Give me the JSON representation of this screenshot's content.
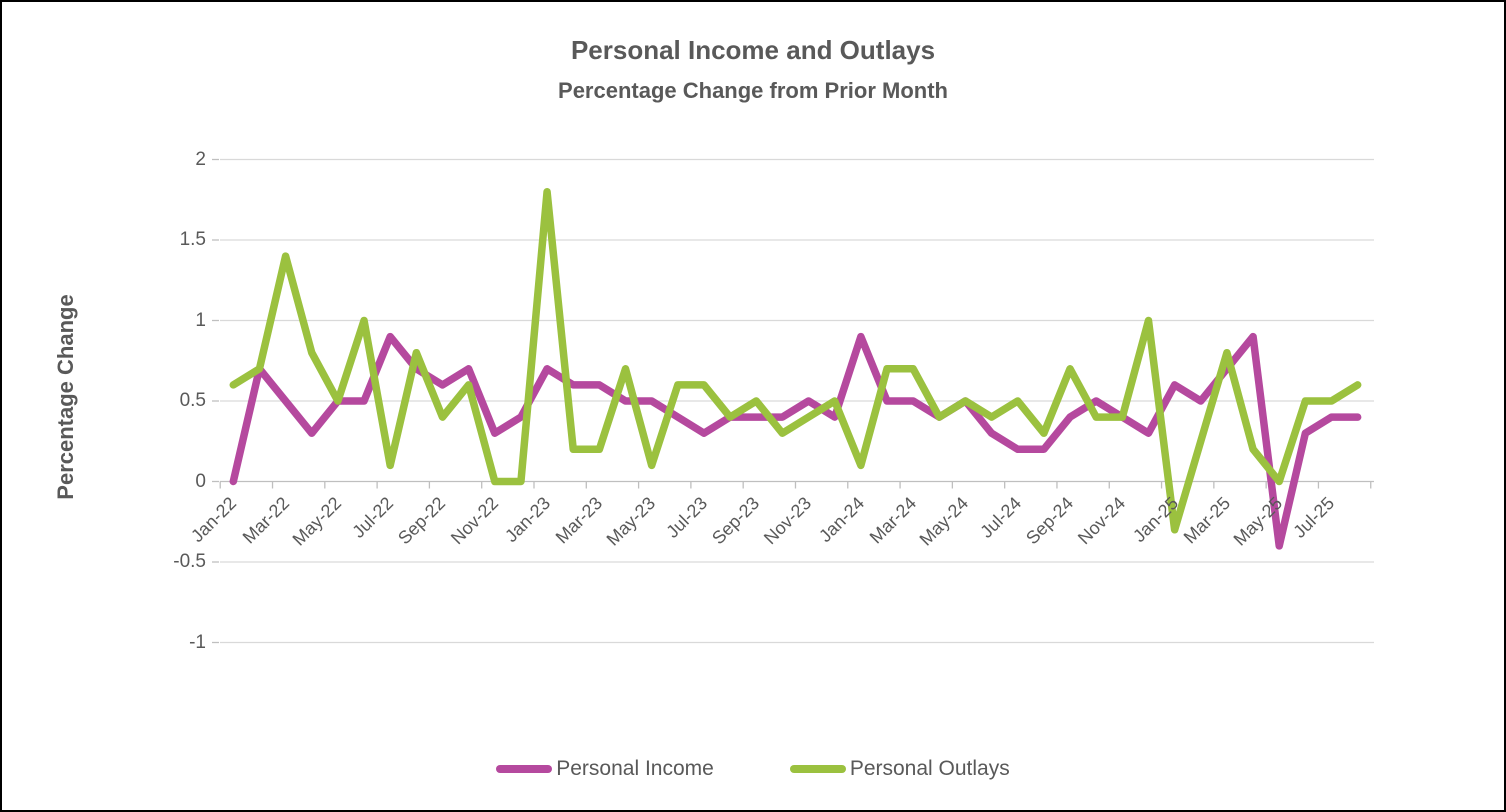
{
  "title": "Personal Income and Outlays",
  "subtitle": "Percentage Change from Prior Month",
  "y_axis_title": "Percentage Change",
  "colors": {
    "income_line": "#b5499e",
    "outlays_line": "#9bc13f",
    "gridline": "#d9d9d9",
    "axis_line": "#bfbfbf",
    "text": "#595959"
  },
  "chart_data": {
    "type": "line",
    "x": [
      "Jan-22",
      "Feb-22",
      "Mar-22",
      "Apr-22",
      "May-22",
      "Jun-22",
      "Jul-22",
      "Aug-22",
      "Sep-22",
      "Oct-22",
      "Nov-22",
      "Dec-22",
      "Jan-23",
      "Feb-23",
      "Mar-23",
      "Apr-23",
      "May-23",
      "Jun-23",
      "Jul-23",
      "Aug-23",
      "Sep-23",
      "Oct-23",
      "Nov-23",
      "Dec-23",
      "Jan-24",
      "Feb-24",
      "Mar-24",
      "Apr-24",
      "May-24",
      "Jun-24",
      "Jul-24",
      "Aug-24",
      "Sep-24",
      "Oct-24",
      "Nov-24",
      "Dec-24",
      "Jan-25",
      "Feb-25",
      "Mar-25",
      "Apr-25",
      "May-25",
      "Jun-25",
      "Jul-25",
      "Aug-25"
    ],
    "x_tick_labels": [
      "Jan-22",
      "Mar-22",
      "May-22",
      "Jul-22",
      "Sep-22",
      "Nov-22",
      "Jan-23",
      "Mar-23",
      "May-23",
      "Jul-23",
      "Sep-23",
      "Nov-23",
      "Jan-24",
      "Mar-24",
      "May-24",
      "Jul-24",
      "Sep-24",
      "Nov-24",
      "Jan-25",
      "Mar-25",
      "May-25",
      "Jul-25"
    ],
    "series": [
      {
        "name": "Personal Income",
        "color": "#b5499e",
        "values": [
          0.0,
          0.7,
          0.5,
          0.3,
          0.5,
          0.5,
          0.9,
          0.7,
          0.6,
          0.7,
          0.3,
          0.4,
          0.7,
          0.6,
          0.6,
          0.5,
          0.5,
          0.4,
          0.3,
          0.4,
          0.4,
          0.4,
          0.5,
          0.4,
          0.9,
          0.5,
          0.5,
          0.4,
          0.5,
          0.3,
          0.2,
          0.2,
          0.4,
          0.5,
          0.4,
          0.3,
          0.6,
          0.5,
          0.7,
          0.9,
          -0.4,
          0.3,
          0.4,
          0.4
        ]
      },
      {
        "name": "Personal Outlays",
        "color": "#9bc13f",
        "values": [
          0.6,
          0.7,
          1.4,
          0.8,
          0.5,
          1.0,
          0.1,
          0.8,
          0.4,
          0.6,
          0.0,
          0.0,
          1.8,
          0.2,
          0.2,
          0.7,
          0.1,
          0.6,
          0.6,
          0.4,
          0.5,
          0.3,
          0.4,
          0.5,
          0.1,
          0.7,
          0.7,
          0.4,
          0.5,
          0.4,
          0.5,
          0.3,
          0.7,
          0.4,
          0.4,
          1.0,
          -0.3,
          0.25,
          0.8,
          0.2,
          0.0,
          0.5,
          0.5,
          0.6
        ]
      }
    ],
    "ylim": [
      -1,
      2
    ],
    "y_ticks": [
      2,
      1.5,
      1,
      0.5,
      0,
      -0.5,
      -1
    ],
    "grid": true,
    "legend_position": "bottom"
  }
}
